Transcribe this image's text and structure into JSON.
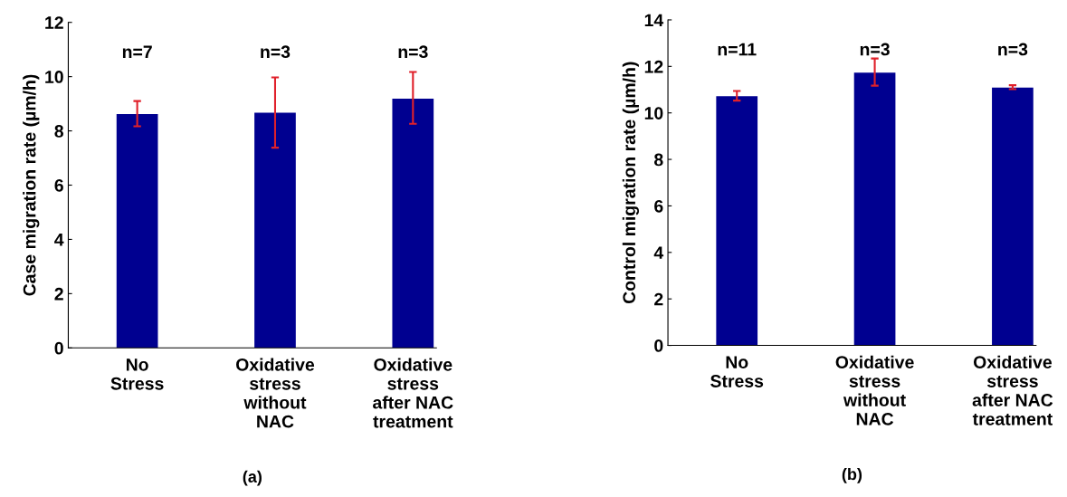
{
  "chart_data": [
    {
      "type": "bar",
      "ylabel": "Case migration rate (µm/h)",
      "categories": [
        "No\nStress",
        "Oxidative\nstress\nwithout\nNAC",
        "Oxidative\nstress\nafter NAC\ntreatment"
      ],
      "values": [
        8.62,
        8.67,
        9.19
      ],
      "errors": [
        [
          8.17,
          9.1
        ],
        [
          7.38,
          9.97
        ],
        [
          8.26,
          10.17
        ]
      ],
      "color": "#000090",
      "ylim": [
        0,
        12
      ],
      "yticks": [
        0,
        2,
        4,
        6,
        8,
        10,
        12
      ],
      "grid": false,
      "annotations": [
        "n=7",
        "n=3",
        "n=3",
        "(a)"
      ]
    },
    {
      "type": "bar",
      "ylabel": "Control migration rate (µm/h)",
      "categories": [
        "No\nStress",
        "Oxidative\nstress\nwithout\nNAC",
        "Oxidative\nstress\nafter NAC\ntreatment"
      ],
      "values": [
        10.72,
        11.73,
        11.09
      ],
      "errors": [
        [
          10.53,
          10.94
        ],
        [
          11.17,
          12.34
        ],
        [
          11.02,
          11.19
        ]
      ],
      "color": "#000090",
      "ylim": [
        0,
        14
      ],
      "yticks": [
        0,
        2,
        4,
        6,
        8,
        10,
        12,
        14
      ],
      "grid": false,
      "annotations": [
        "n=11",
        "n=3",
        "n=3",
        "(b)"
      ]
    }
  ]
}
